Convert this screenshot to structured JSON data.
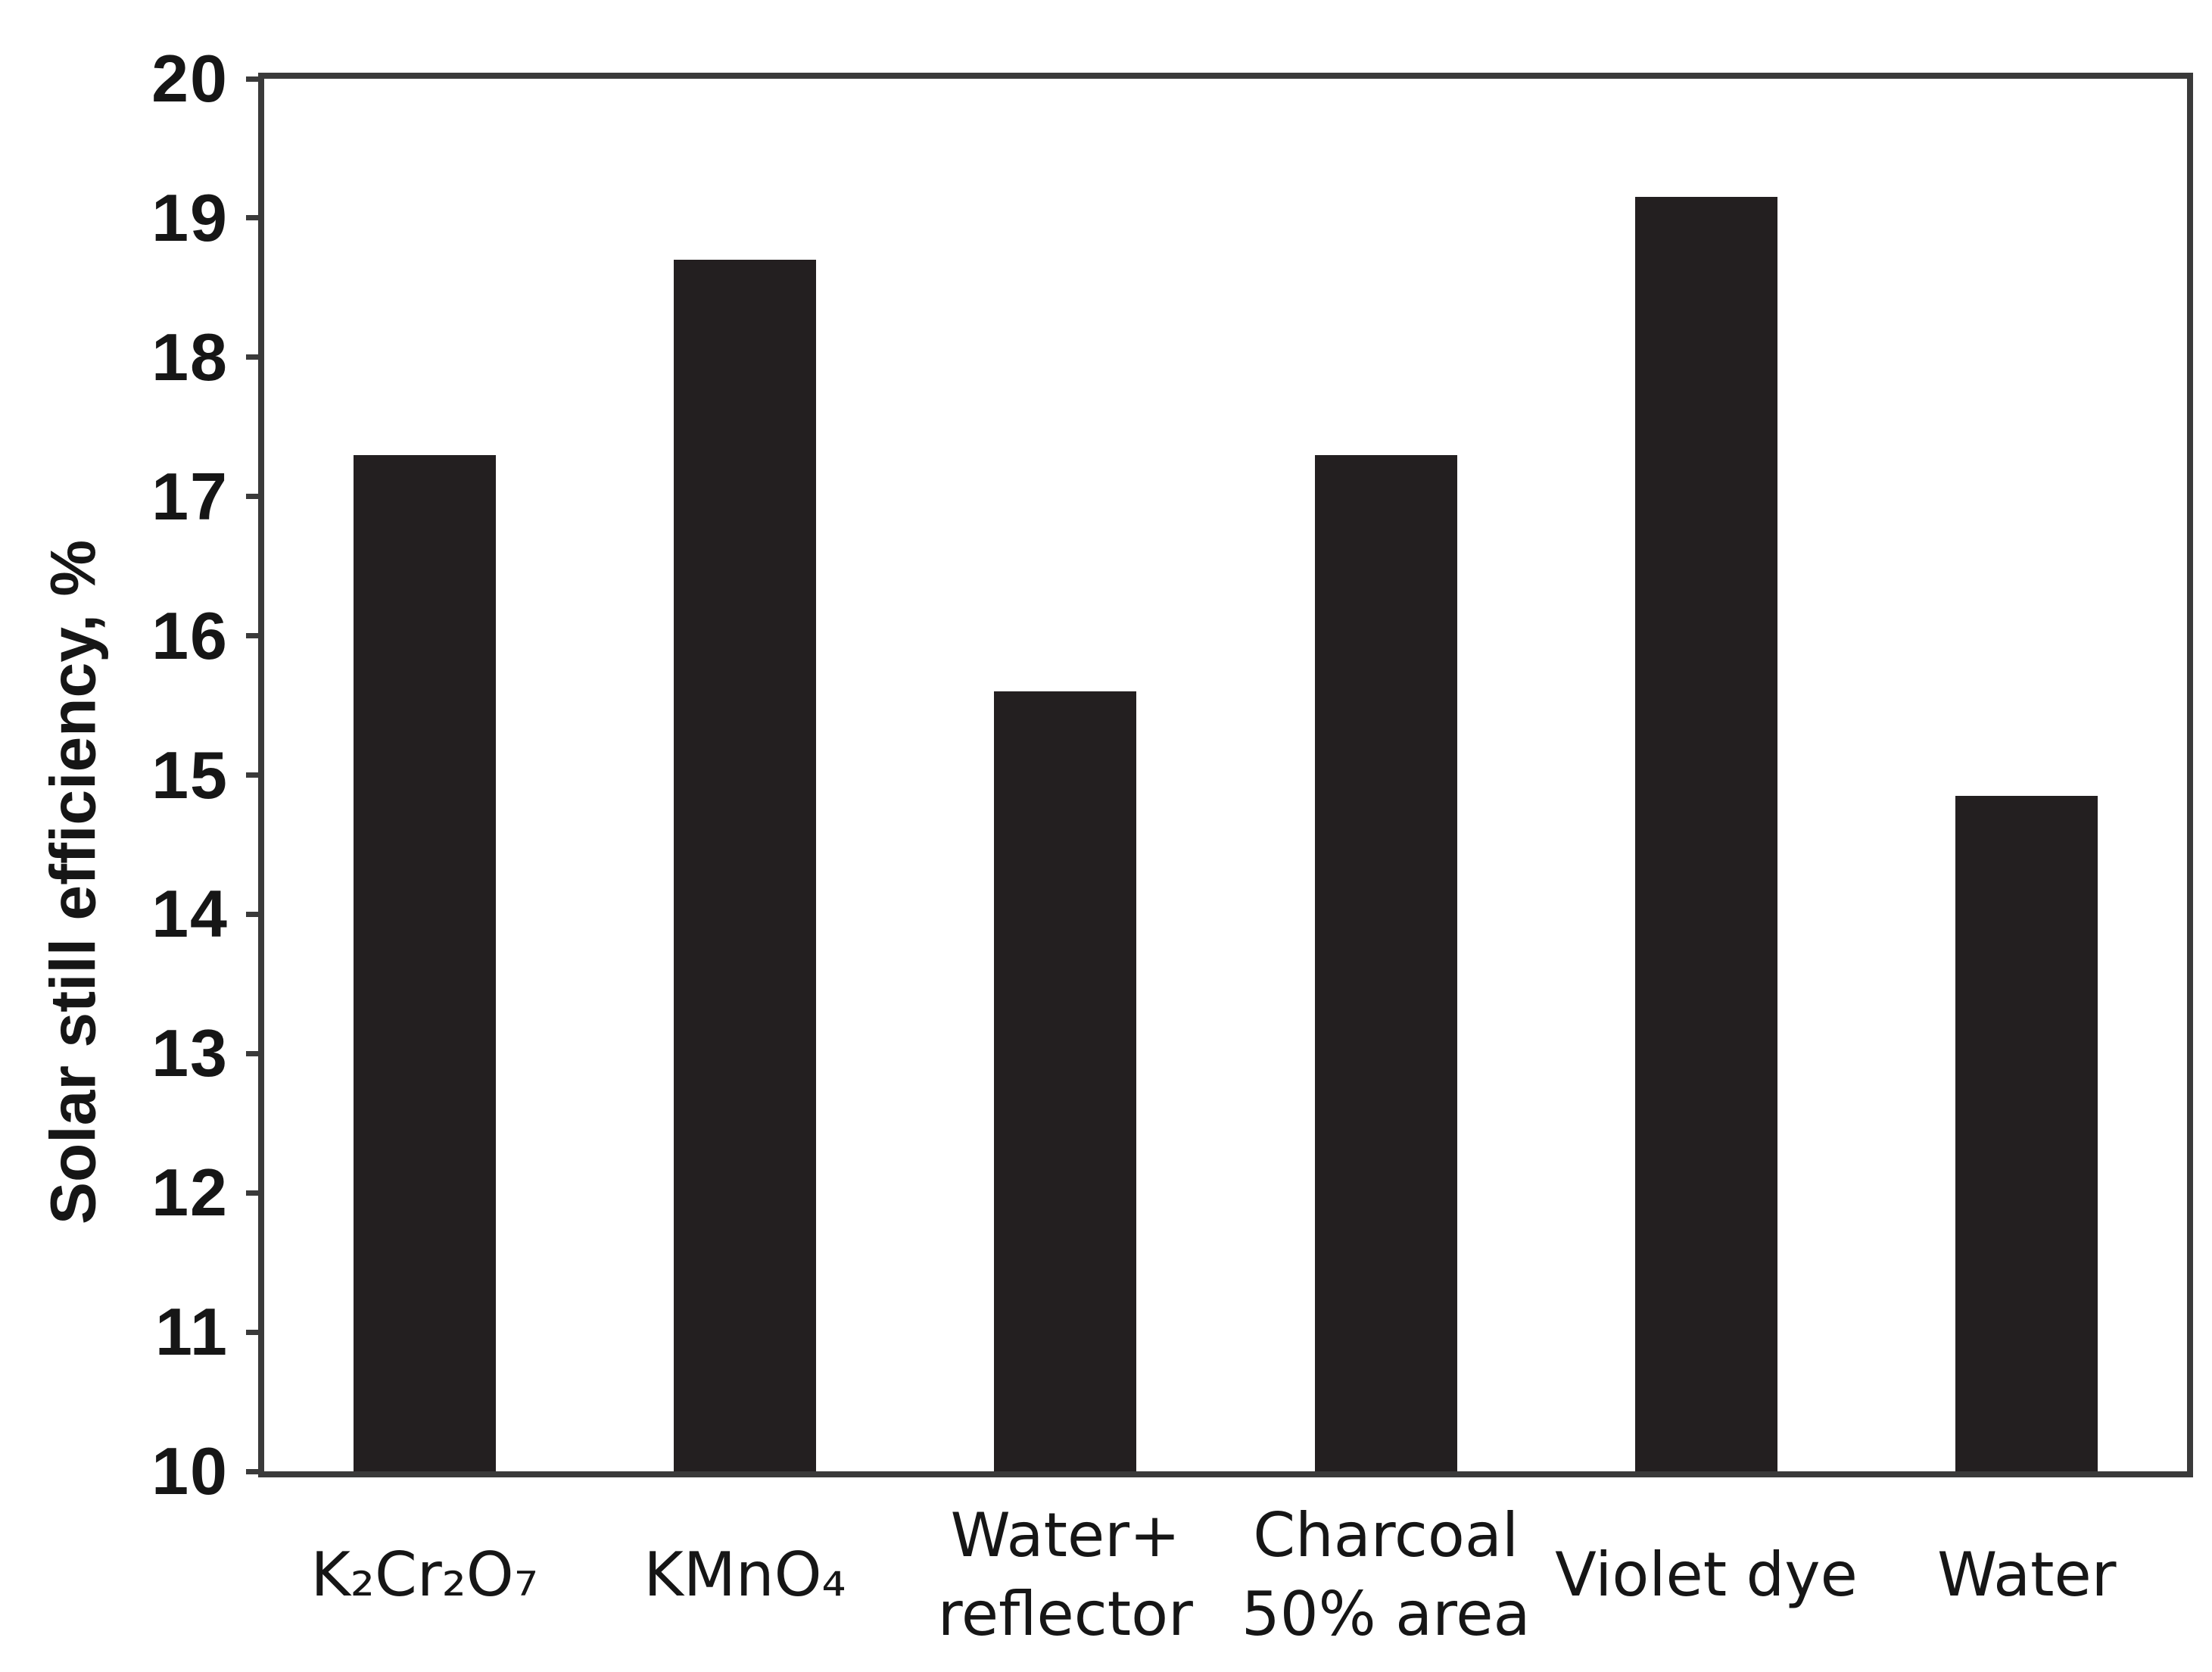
{
  "figure": {
    "background": "#ffffff"
  },
  "chart_data": {
    "type": "bar",
    "title": "",
    "xlabel": "",
    "ylabel": "Solar still efficiency, %",
    "ylim": [
      10,
      20
    ],
    "y_ticks": [
      20,
      19,
      18,
      17,
      16,
      15,
      14,
      13,
      12,
      11,
      10
    ],
    "categories": [
      "K₂Cr₂O₇",
      "KMnO₄",
      "Water+\nreflector",
      "Charcoal\n50% area",
      "Violet dye",
      "Water"
    ],
    "values": [
      17.3,
      18.7,
      15.6,
      17.3,
      19.15,
      14.85
    ],
    "series": [
      {
        "name": "Solar still efficiency, %",
        "values": [
          17.3,
          18.7,
          15.6,
          17.3,
          19.15,
          14.85
        ]
      }
    ],
    "bar_color": "#231f20",
    "axis_color": "#3a3a3a",
    "text_color": "#161616",
    "grid": false,
    "legend_position": null
  }
}
